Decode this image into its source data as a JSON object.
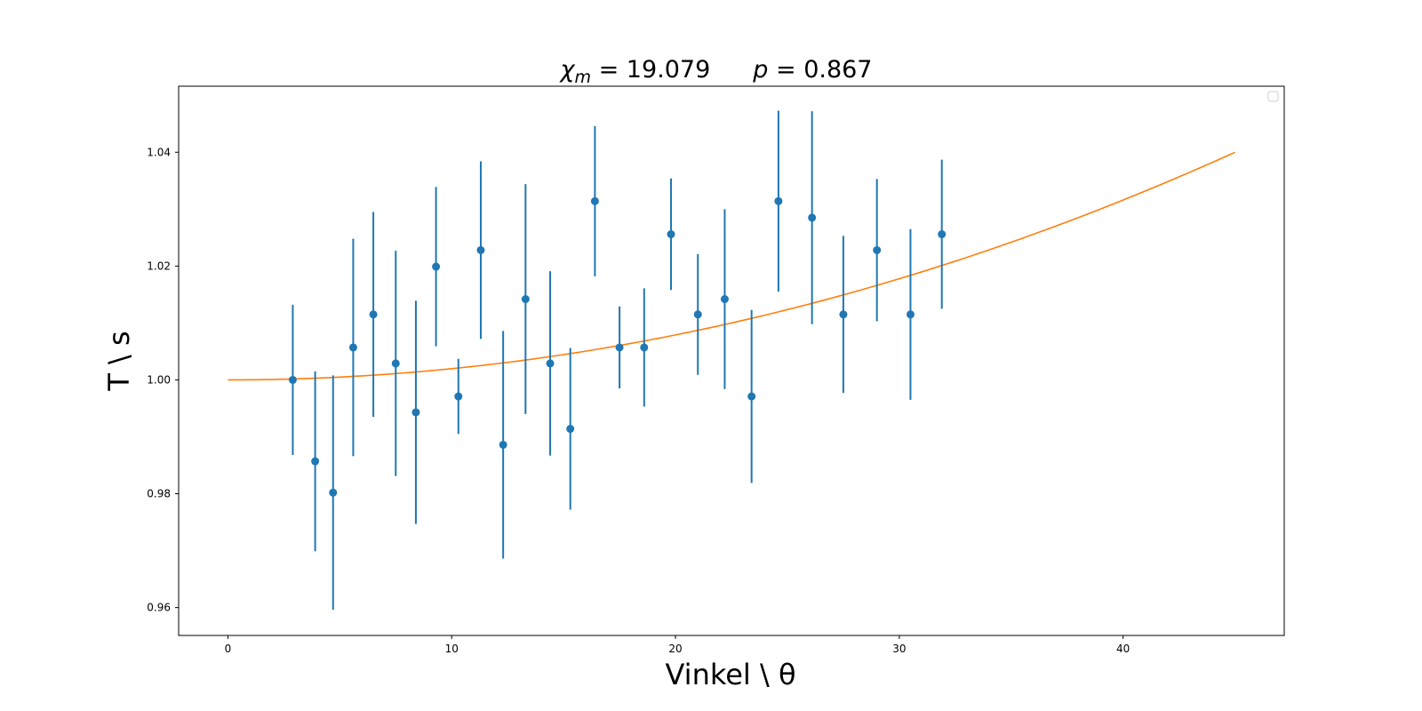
{
  "chart_data": {
    "type": "scatter",
    "title": {
      "chi_symbol": "χ",
      "chi_sub": "m",
      "chi_eq": " = 19.079",
      "p_symbol": "p",
      "p_eq": " = 0.867"
    },
    "xlabel": "Vinkel \\ θ",
    "ylabel": "T \\ s",
    "xlim": [
      -2.2,
      47.2
    ],
    "ylim": [
      0.9551,
      1.0516
    ],
    "x_ticks": [
      0,
      10,
      20,
      30,
      40
    ],
    "y_ticks": [
      0.96,
      0.98,
      1.0,
      1.02,
      1.04
    ],
    "x_tick_labels": [
      "0",
      "10",
      "20",
      "30",
      "40"
    ],
    "y_tick_labels": [
      "0.96",
      "0.98",
      "1.00",
      "1.02",
      "1.04"
    ],
    "grid": false,
    "legend": "top-right (empty)",
    "colors": {
      "points": "#1f77b4",
      "fit": "#ff7f0e"
    },
    "series": [
      {
        "type": "errorbar",
        "points": [
          {
            "x": 2.9,
            "y": 1.0,
            "err": 0.0132
          },
          {
            "x": 3.9,
            "y": 0.9857,
            "err": 0.0158
          },
          {
            "x": 4.7,
            "y": 0.9802,
            "err": 0.0206
          },
          {
            "x": 5.6,
            "y": 1.0057,
            "err": 0.0191
          },
          {
            "x": 6.5,
            "y": 1.0115,
            "err": 0.018
          },
          {
            "x": 7.5,
            "y": 1.0029,
            "err": 0.0198
          },
          {
            "x": 8.4,
            "y": 0.9943,
            "err": 0.0196
          },
          {
            "x": 9.3,
            "y": 1.0199,
            "err": 0.014
          },
          {
            "x": 10.3,
            "y": 0.9971,
            "err": 0.0066
          },
          {
            "x": 11.3,
            "y": 1.0228,
            "err": 0.0156
          },
          {
            "x": 12.3,
            "y": 0.9886,
            "err": 0.02
          },
          {
            "x": 13.3,
            "y": 1.0142,
            "err": 0.0202
          },
          {
            "x": 14.4,
            "y": 1.0029,
            "err": 0.0162
          },
          {
            "x": 15.3,
            "y": 0.9914,
            "err": 0.0142
          },
          {
            "x": 16.4,
            "y": 1.0314,
            "err": 0.0132
          },
          {
            "x": 17.5,
            "y": 1.0057,
            "err": 0.0072
          },
          {
            "x": 18.6,
            "y": 1.0057,
            "err": 0.0104
          },
          {
            "x": 19.8,
            "y": 1.0256,
            "err": 0.0098
          },
          {
            "x": 21.0,
            "y": 1.0115,
            "err": 0.0106
          },
          {
            "x": 22.2,
            "y": 1.0142,
            "err": 0.0158
          },
          {
            "x": 23.4,
            "y": 0.9971,
            "err": 0.0152
          },
          {
            "x": 24.6,
            "y": 1.0314,
            "err": 0.0159
          },
          {
            "x": 26.1,
            "y": 1.0285,
            "err": 0.0187
          },
          {
            "x": 27.5,
            "y": 1.0115,
            "err": 0.0138
          },
          {
            "x": 29.0,
            "y": 1.0228,
            "err": 0.0125
          },
          {
            "x": 30.5,
            "y": 1.0115,
            "err": 0.015
          },
          {
            "x": 31.9,
            "y": 1.0256,
            "err": 0.0131
          }
        ]
      },
      {
        "type": "line",
        "x_range": [
          0,
          45
        ],
        "model": "1 + a*x^2",
        "a": 1.975e-05
      }
    ]
  }
}
